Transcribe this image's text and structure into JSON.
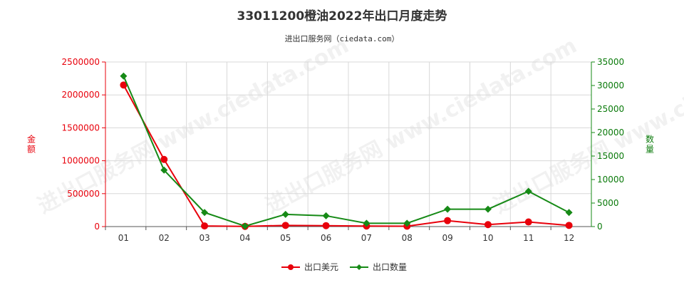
{
  "title": "33011200橙油2022年出口月度走势",
  "subtitle": "进出口服务网（ciedata.com）",
  "watermark": "进出口服务网 www.ciedata.com",
  "chart_data": {
    "type": "line",
    "categories": [
      "01",
      "02",
      "03",
      "04",
      "05",
      "06",
      "07",
      "08",
      "09",
      "10",
      "11",
      "12"
    ],
    "y_left": {
      "label": "金额",
      "ylim": [
        0,
        2500000
      ],
      "ticks": [
        "0",
        "500000",
        "1000000",
        "1500000",
        "2000000",
        "2500000"
      ]
    },
    "y_right": {
      "label": "数量",
      "ylim": [
        0,
        35000
      ],
      "ticks": [
        "0",
        "5000",
        "10000",
        "15000",
        "20000",
        "25000",
        "30000",
        "35000"
      ]
    },
    "series": [
      {
        "name": "出口美元",
        "axis": "left",
        "color": "#e8000b",
        "marker": "circle",
        "values": [
          2150000,
          1020000,
          10000,
          3000,
          18000,
          14000,
          8000,
          6000,
          90000,
          30000,
          70000,
          18000
        ]
      },
      {
        "name": "出口数量",
        "axis": "right",
        "color": "#168a16",
        "marker": "diamond",
        "values": [
          32000,
          12000,
          3000,
          100,
          2600,
          2300,
          700,
          700,
          3700,
          3700,
          7500,
          3000
        ]
      }
    ],
    "grid": true,
    "legend_position": "bottom"
  }
}
